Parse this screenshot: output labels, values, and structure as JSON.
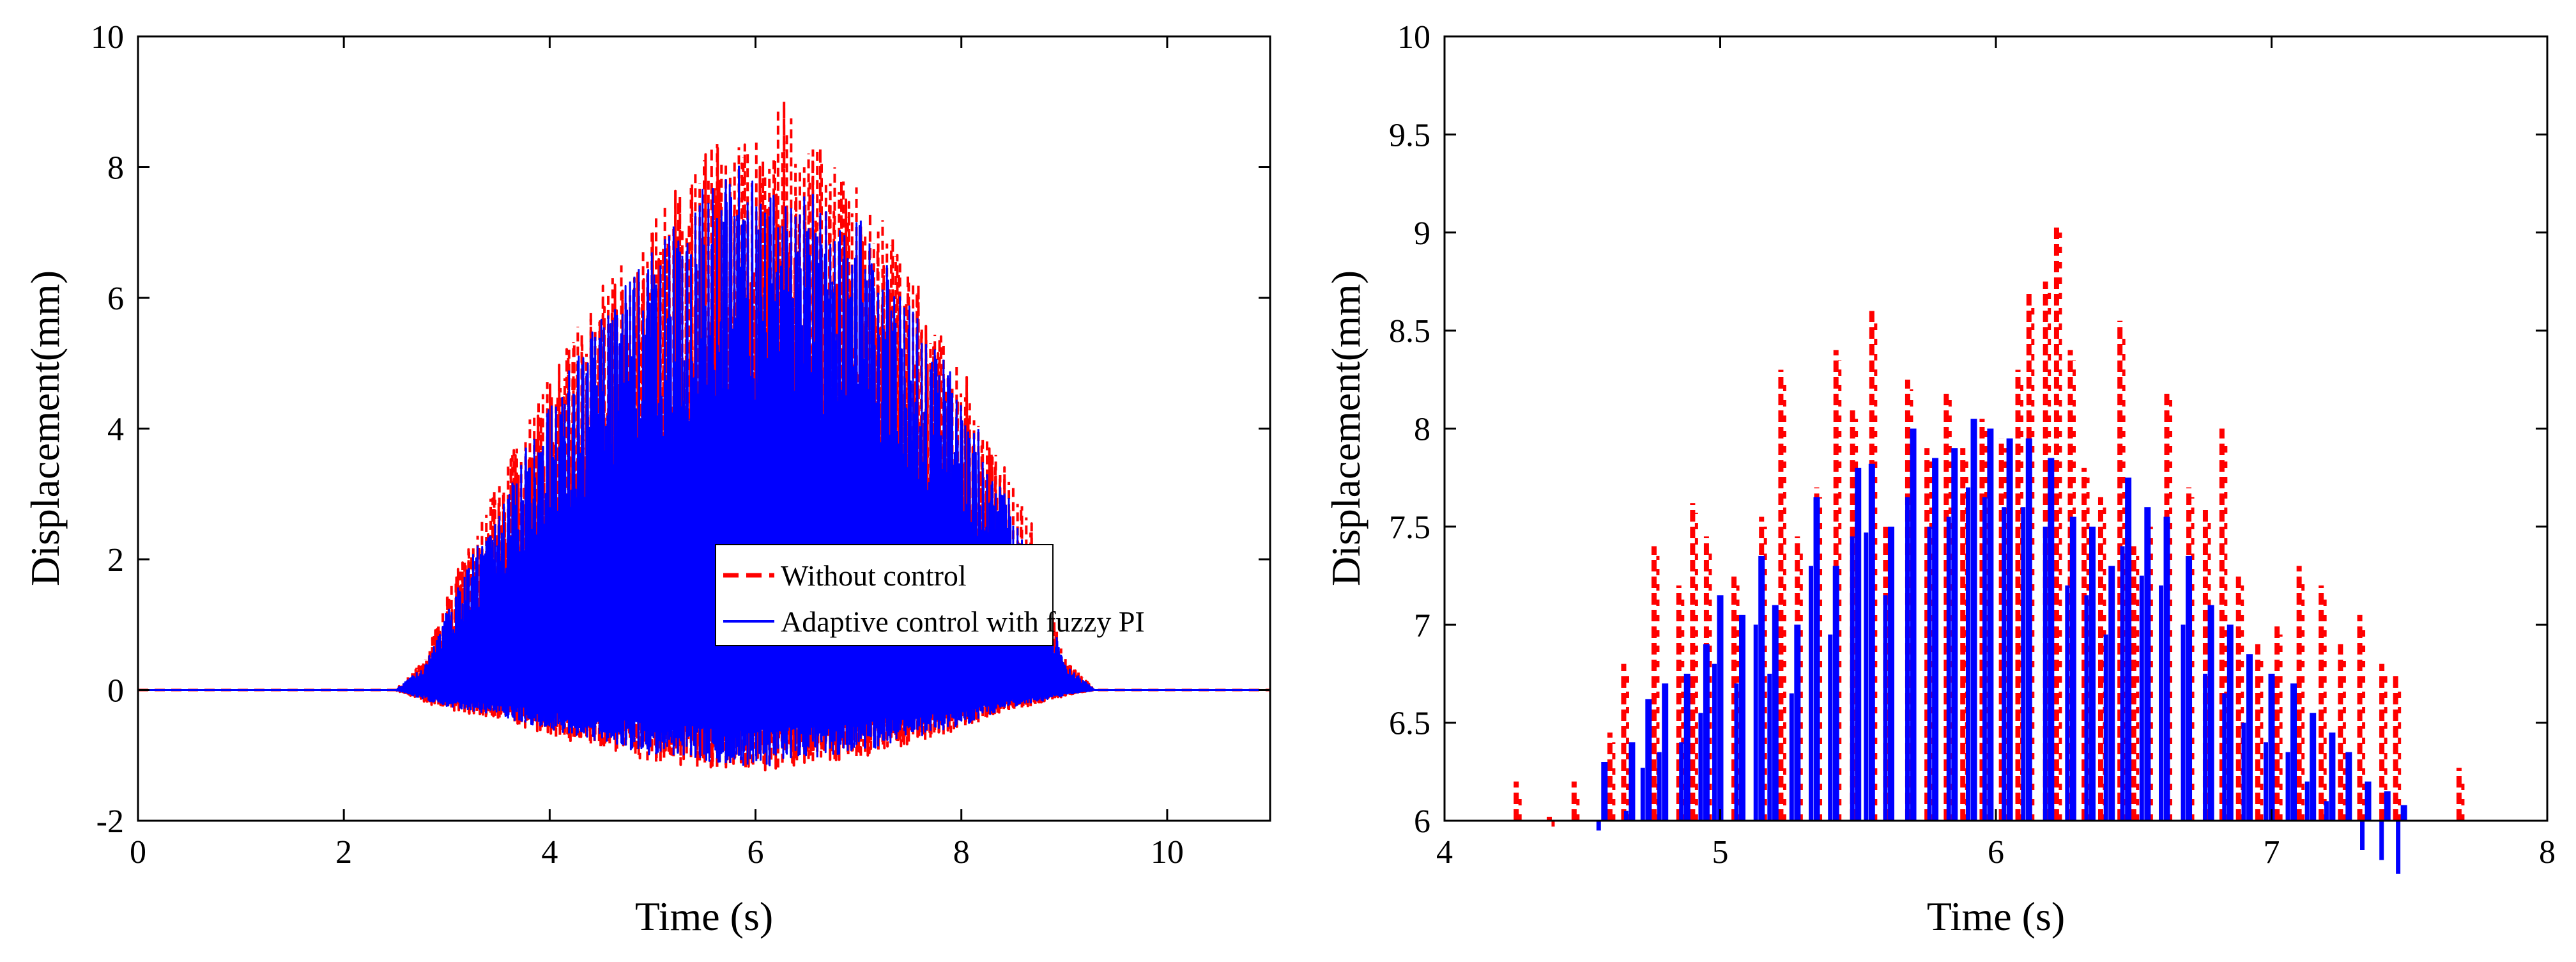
{
  "colors": {
    "without": "#ff0000",
    "adaptive": "#0000ff",
    "axis": "#000000"
  },
  "chart_data": [
    {
      "type": "line",
      "xlabel": "Time (s)",
      "ylabel": "Displacement(mm)",
      "xlim": [
        0,
        11
      ],
      "ylim": [
        -2,
        10
      ],
      "xticks": [
        0,
        2,
        4,
        6,
        8,
        10
      ],
      "yticks": [
        -2,
        0,
        2,
        4,
        6,
        8,
        10
      ],
      "xtick_labels": [
        "0",
        "2",
        "4",
        "6",
        "8",
        "10"
      ],
      "ytick_labels": [
        "-2",
        "0",
        "2",
        "4",
        "6",
        "8",
        "10"
      ],
      "legend": {
        "placement": "lower-right",
        "entries": [
          "Without control",
          "Adaptive control with fuzzy PI"
        ]
      },
      "series": [
        {
          "name": "Without control",
          "style": "dashed",
          "envelope": {
            "time": [
              0,
              2.5,
              2.8,
              3.0,
              3.5,
              4.0,
              4.5,
              5.0,
              5.5,
              6.0,
              6.25,
              6.5,
              7.0,
              7.5,
              8.0,
              8.5,
              8.7,
              9.0,
              9.3,
              11
            ],
            "upper": [
              0,
              0,
              0.5,
              1.5,
              3.2,
              4.8,
              6.2,
              7.2,
              8.3,
              8.7,
              9.1,
              8.5,
              7.8,
              6.5,
              5.0,
              3.2,
              2.5,
              0.5,
              0,
              0
            ],
            "lower": [
              0,
              0,
              -0.2,
              -0.3,
              -0.45,
              -0.7,
              -0.9,
              -1.1,
              -1.2,
              -1.25,
              -1.2,
              -1.15,
              -1.05,
              -0.85,
              -0.6,
              -0.3,
              -0.25,
              -0.1,
              0,
              0
            ]
          }
        },
        {
          "name": "Adaptive control with fuzzy PI",
          "style": "solid",
          "envelope": {
            "time": [
              0,
              2.5,
              2.8,
              3.0,
              3.5,
              4.0,
              4.5,
              5.0,
              5.5,
              5.75,
              6.0,
              6.5,
              7.0,
              7.5,
              8.0,
              8.5,
              8.7,
              9.0,
              9.3,
              11
            ],
            "upper": [
              0,
              0,
              0.4,
              1.2,
              2.9,
              4.4,
              5.7,
              6.8,
              7.7,
              8.05,
              8.0,
              7.8,
              7.3,
              6.0,
              4.6,
              2.8,
              2.1,
              0.4,
              0,
              0
            ],
            "lower": [
              0,
              0,
              -0.15,
              -0.25,
              -0.4,
              -0.6,
              -0.8,
              -1.0,
              -1.1,
              -1.15,
              -1.2,
              -1.05,
              -0.95,
              -0.75,
              -0.55,
              -0.25,
              -0.2,
              -0.08,
              0,
              0
            ]
          }
        }
      ]
    },
    {
      "type": "line",
      "xlabel": "Time (s)",
      "ylabel": "Displacement(mm)",
      "xlim": [
        4,
        8
      ],
      "ylim": [
        6,
        10
      ],
      "xticks": [
        4,
        5,
        6,
        7,
        8
      ],
      "yticks": [
        6,
        6.5,
        7,
        7.5,
        8,
        8.5,
        9,
        9.5,
        10
      ],
      "xtick_labels": [
        "4",
        "5",
        "6",
        "7",
        "8"
      ],
      "ytick_labels": [
        "6",
        "6.5",
        "7",
        "7.5",
        "8",
        "8.5",
        "9",
        "9.5",
        "10"
      ],
      "series": [
        {
          "name": "Without control",
          "style": "dashed",
          "peaks": {
            "time": [
              4.26,
              4.38,
              4.47,
              4.6,
              4.65,
              4.76,
              4.85,
              4.9,
              4.95,
              5.05,
              5.15,
              5.22,
              5.28,
              5.35,
              5.42,
              5.48,
              5.55,
              5.6,
              5.68,
              5.75,
              5.82,
              5.88,
              5.95,
              6.02,
              6.08,
              6.12,
              6.18,
              6.22,
              6.27,
              6.32,
              6.38,
              6.45,
              6.5,
              6.55,
              6.62,
              6.7,
              6.76,
              6.82,
              6.88,
              6.95,
              7.02,
              7.1,
              7.18,
              7.25,
              7.32,
              7.4,
              7.45,
              7.68
            ],
            "values": [
              6.2,
              6.02,
              6.2,
              6.45,
              6.8,
              7.4,
              7.2,
              7.62,
              7.45,
              7.25,
              7.55,
              8.3,
              7.45,
              7.7,
              8.4,
              8.1,
              8.6,
              7.5,
              8.25,
              7.9,
              8.2,
              7.9,
              8.05,
              7.95,
              8.3,
              8.7,
              8.75,
              9.05,
              8.4,
              7.8,
              7.65,
              8.55,
              7.4,
              7.55,
              8.2,
              7.7,
              7.6,
              8.0,
              7.25,
              6.9,
              7.0,
              7.3,
              7.2,
              6.9,
              7.05,
              6.8,
              6.75,
              6.27
            ]
          }
        },
        {
          "name": "Adaptive control with fuzzy PI",
          "style": "solid",
          "peaks": {
            "time": [
              4.58,
              4.68,
              4.74,
              4.8,
              4.88,
              4.95,
              5.0,
              5.08,
              5.15,
              5.2,
              5.28,
              5.35,
              5.42,
              5.5,
              5.55,
              5.62,
              5.7,
              5.78,
              5.85,
              5.92,
              5.98,
              6.05,
              6.12,
              6.2,
              6.28,
              6.35,
              6.42,
              6.48,
              6.55,
              6.62,
              6.7,
              6.78,
              6.85,
              6.92,
              7.0,
              7.08,
              7.15,
              7.22,
              7.28,
              7.35,
              7.42,
              7.48
            ],
            "values": [
              6.3,
              6.4,
              6.62,
              6.7,
              6.75,
              6.9,
              7.15,
              7.05,
              7.35,
              7.1,
              7.0,
              7.65,
              7.3,
              7.8,
              7.82,
              7.5,
              8.0,
              7.85,
              7.9,
              8.05,
              8.0,
              7.95,
              7.95,
              7.85,
              7.55,
              7.5,
              7.3,
              7.75,
              7.6,
              7.55,
              7.35,
              7.1,
              7.0,
              6.85,
              6.75,
              6.7,
              6.55,
              6.45,
              6.35,
              6.2,
              6.15,
              6.08
            ]
          }
        }
      ]
    }
  ]
}
